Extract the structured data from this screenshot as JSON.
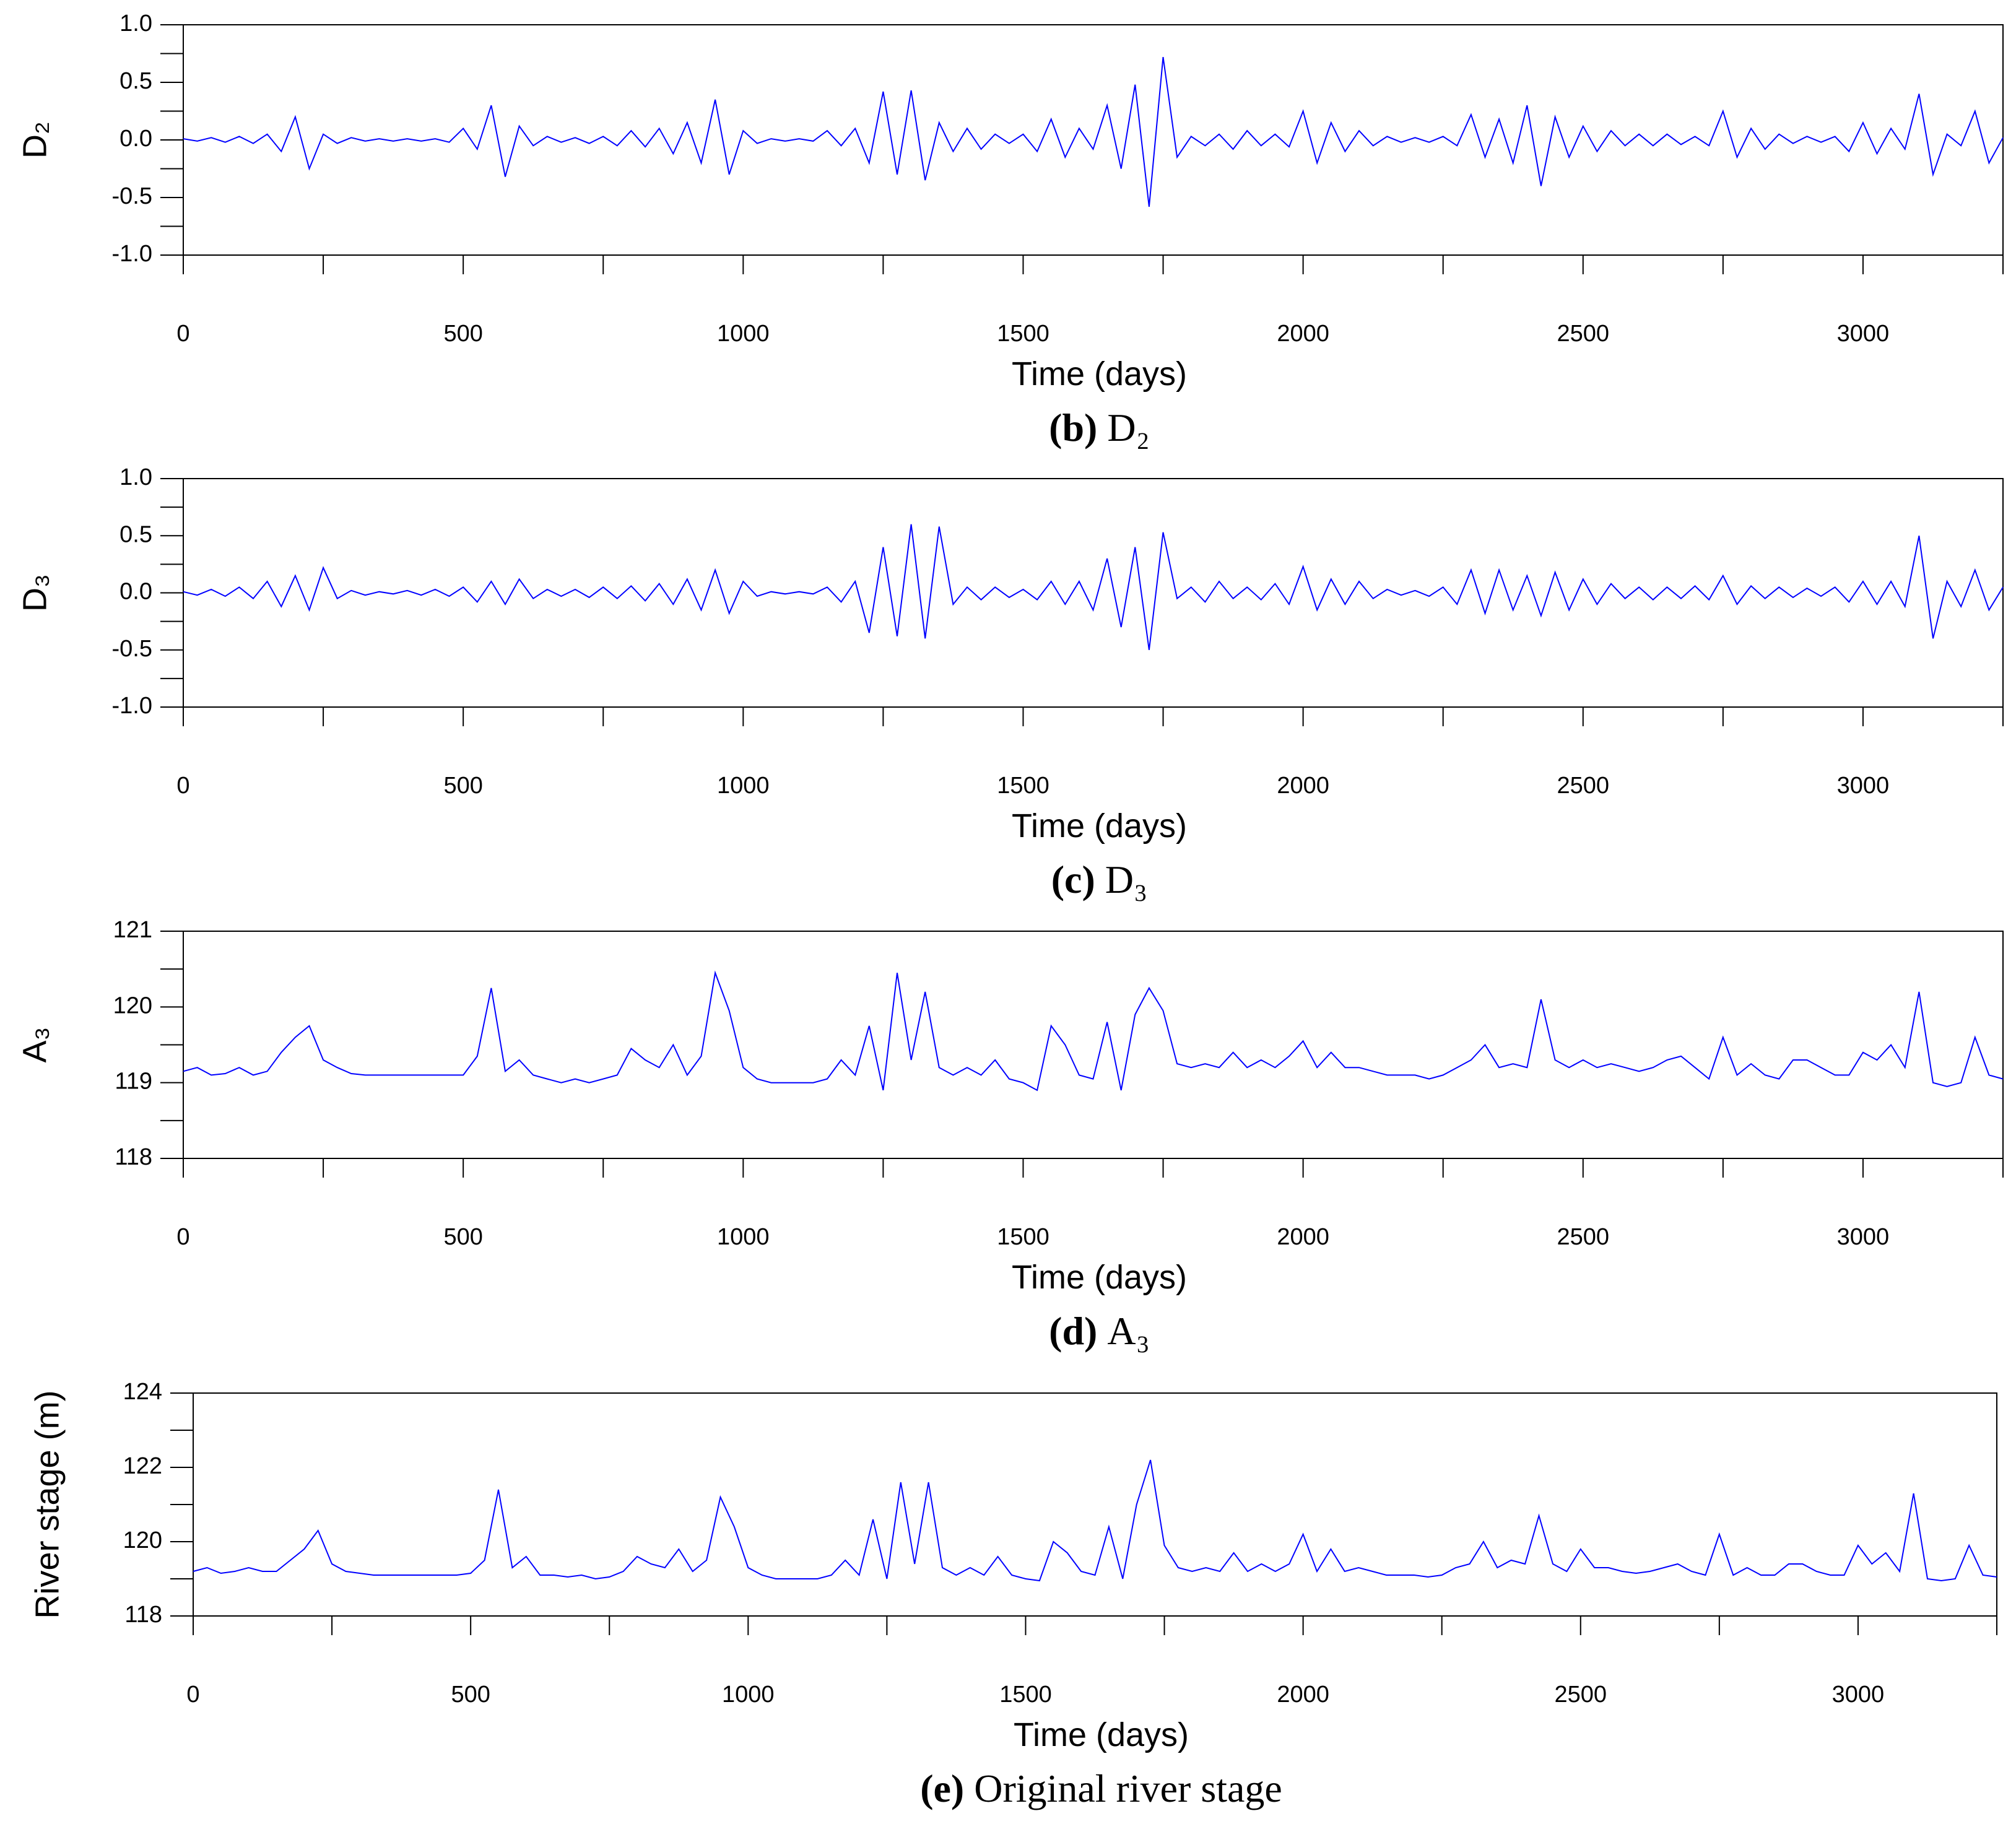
{
  "chart_data": [
    {
      "type": "line",
      "caption_label": "(b)",
      "caption": "D₂",
      "ylabel": "D₂",
      "xlabel": "Time (days)",
      "color": "#0000ff",
      "x": [
        0,
        25,
        50,
        75,
        100,
        125,
        150,
        175,
        200,
        225,
        250,
        275,
        300,
        325,
        350,
        375,
        400,
        425,
        450,
        475,
        500,
        525,
        550,
        575,
        600,
        625,
        650,
        675,
        700,
        725,
        750,
        775,
        800,
        825,
        850,
        875,
        900,
        925,
        950,
        975,
        1000,
        1025,
        1050,
        1075,
        1100,
        1125,
        1150,
        1175,
        1200,
        1225,
        1250,
        1275,
        1300,
        1325,
        1350,
        1375,
        1400,
        1425,
        1450,
        1475,
        1500,
        1525,
        1550,
        1575,
        1600,
        1625,
        1650,
        1675,
        1700,
        1725,
        1750,
        1775,
        1800,
        1825,
        1850,
        1875,
        1900,
        1925,
        1950,
        1975,
        2000,
        2025,
        2050,
        2075,
        2100,
        2125,
        2150,
        2175,
        2200,
        2225,
        2250,
        2275,
        2300,
        2325,
        2350,
        2375,
        2400,
        2425,
        2450,
        2475,
        2500,
        2525,
        2550,
        2575,
        2600,
        2625,
        2650,
        2675,
        2700,
        2725,
        2750,
        2775,
        2800,
        2825,
        2850,
        2875,
        2900,
        2925,
        2950,
        2975,
        3000,
        3025,
        3050,
        3075,
        3100,
        3125,
        3150,
        3175,
        3200,
        3225,
        3250
      ],
      "values": [
        0.01,
        -0.01,
        0.02,
        -0.02,
        0.03,
        -0.03,
        0.05,
        -0.1,
        0.2,
        -0.25,
        0.05,
        -0.03,
        0.02,
        -0.01,
        0.01,
        -0.01,
        0.01,
        -0.01,
        0.01,
        -0.02,
        0.1,
        -0.08,
        0.3,
        -0.32,
        0.12,
        -0.05,
        0.03,
        -0.02,
        0.02,
        -0.03,
        0.03,
        -0.05,
        0.08,
        -0.06,
        0.1,
        -0.12,
        0.15,
        -0.2,
        0.35,
        -0.3,
        0.08,
        -0.03,
        0.01,
        -0.01,
        0.01,
        -0.01,
        0.08,
        -0.05,
        0.1,
        -0.2,
        0.42,
        -0.3,
        0.43,
        -0.35,
        0.15,
        -0.1,
        0.1,
        -0.08,
        0.05,
        -0.03,
        0.05,
        -0.1,
        0.18,
        -0.15,
        0.1,
        -0.08,
        0.3,
        -0.25,
        0.48,
        -0.58,
        0.72,
        -0.15,
        0.03,
        -0.05,
        0.05,
        -0.08,
        0.08,
        -0.05,
        0.05,
        -0.06,
        0.25,
        -0.2,
        0.15,
        -0.1,
        0.08,
        -0.05,
        0.03,
        -0.02,
        0.02,
        -0.02,
        0.03,
        -0.05,
        0.22,
        -0.15,
        0.18,
        -0.2,
        0.3,
        -0.4,
        0.2,
        -0.15,
        0.12,
        -0.1,
        0.08,
        -0.05,
        0.05,
        -0.05,
        0.05,
        -0.04,
        0.03,
        -0.05,
        0.25,
        -0.15,
        0.1,
        -0.08,
        0.05,
        -0.03,
        0.03,
        -0.02,
        0.03,
        -0.1,
        0.15,
        -0.12,
        0.1,
        -0.08,
        0.4,
        -0.3,
        0.05,
        -0.05,
        0.25,
        -0.2,
        0.02
      ],
      "xlim": [
        0,
        3250
      ],
      "xticks": [
        0,
        500,
        1000,
        1500,
        2000,
        2500,
        3000
      ],
      "xminor": [
        250,
        750,
        1250,
        1750,
        2250,
        2750,
        3250
      ],
      "ylim": [
        -1,
        1
      ],
      "yticks": [
        {
          "value": -1,
          "label": "-1.0"
        },
        -0.5,
        {
          "value": 0,
          "label": "0.0"
        },
        0.5,
        {
          "value": 1,
          "label": "1.0"
        }
      ],
      "yminor": [
        -0.75,
        -0.25,
        0.25,
        0.75
      ]
    },
    {
      "type": "line",
      "caption_label": "(c)",
      "caption": "D₃",
      "ylabel": "D₃",
      "xlabel": "Time (days)",
      "color": "#0000ff",
      "x": [
        0,
        25,
        50,
        75,
        100,
        125,
        150,
        175,
        200,
        225,
        250,
        275,
        300,
        325,
        350,
        375,
        400,
        425,
        450,
        475,
        500,
        525,
        550,
        575,
        600,
        625,
        650,
        675,
        700,
        725,
        750,
        775,
        800,
        825,
        850,
        875,
        900,
        925,
        950,
        975,
        1000,
        1025,
        1050,
        1075,
        1100,
        1125,
        1150,
        1175,
        1200,
        1225,
        1250,
        1275,
        1300,
        1325,
        1350,
        1375,
        1400,
        1425,
        1450,
        1475,
        1500,
        1525,
        1550,
        1575,
        1600,
        1625,
        1650,
        1675,
        1700,
        1725,
        1750,
        1775,
        1800,
        1825,
        1850,
        1875,
        1900,
        1925,
        1950,
        1975,
        2000,
        2025,
        2050,
        2075,
        2100,
        2125,
        2150,
        2175,
        2200,
        2225,
        2250,
        2275,
        2300,
        2325,
        2350,
        2375,
        2400,
        2425,
        2450,
        2475,
        2500,
        2525,
        2550,
        2575,
        2600,
        2625,
        2650,
        2675,
        2700,
        2725,
        2750,
        2775,
        2800,
        2825,
        2850,
        2875,
        2900,
        2925,
        2950,
        2975,
        3000,
        3025,
        3050,
        3075,
        3100,
        3125,
        3150,
        3175,
        3200,
        3225,
        3250
      ],
      "values": [
        0.01,
        -0.02,
        0.03,
        -0.03,
        0.05,
        -0.05,
        0.1,
        -0.12,
        0.15,
        -0.15,
        0.22,
        -0.05,
        0.02,
        -0.02,
        0.01,
        -0.01,
        0.02,
        -0.02,
        0.03,
        -0.03,
        0.05,
        -0.08,
        0.1,
        -0.1,
        0.12,
        -0.05,
        0.03,
        -0.03,
        0.03,
        -0.04,
        0.05,
        -0.05,
        0.06,
        -0.07,
        0.08,
        -0.1,
        0.12,
        -0.15,
        0.2,
        -0.18,
        0.1,
        -0.03,
        0.01,
        -0.01,
        0.01,
        -0.01,
        0.05,
        -0.08,
        0.1,
        -0.35,
        0.4,
        -0.38,
        0.6,
        -0.4,
        0.58,
        -0.1,
        0.05,
        -0.06,
        0.05,
        -0.04,
        0.03,
        -0.06,
        0.1,
        -0.1,
        0.1,
        -0.15,
        0.3,
        -0.3,
        0.4,
        -0.5,
        0.53,
        -0.05,
        0.05,
        -0.08,
        0.1,
        -0.05,
        0.05,
        -0.06,
        0.08,
        -0.1,
        0.23,
        -0.15,
        0.12,
        -0.1,
        0.1,
        -0.05,
        0.03,
        -0.02,
        0.02,
        -0.03,
        0.05,
        -0.1,
        0.2,
        -0.18,
        0.2,
        -0.15,
        0.15,
        -0.2,
        0.18,
        -0.15,
        0.12,
        -0.1,
        0.08,
        -0.05,
        0.05,
        -0.06,
        0.05,
        -0.05,
        0.06,
        -0.06,
        0.15,
        -0.1,
        0.06,
        -0.05,
        0.05,
        -0.04,
        0.04,
        -0.03,
        0.05,
        -0.08,
        0.1,
        -0.1,
        0.1,
        -0.12,
        0.5,
        -0.4,
        0.1,
        -0.12,
        0.2,
        -0.15,
        0.05
      ],
      "xlim": [
        0,
        3250
      ],
      "xticks": [
        0,
        500,
        1000,
        1500,
        2000,
        2500,
        3000
      ],
      "xminor": [
        250,
        750,
        1250,
        1750,
        2250,
        2750,
        3250
      ],
      "ylim": [
        -1,
        1
      ],
      "yticks": [
        {
          "value": -1,
          "label": "-1.0"
        },
        -0.5,
        {
          "value": 0,
          "label": "0.0"
        },
        0.5,
        {
          "value": 1,
          "label": "1.0"
        }
      ],
      "yminor": [
        -0.75,
        -0.25,
        0.25,
        0.75
      ]
    },
    {
      "type": "line",
      "caption_label": "(d)",
      "caption": "A₃",
      "ylabel": "A₃",
      "xlabel": "Time (days)",
      "color": "#0000ff",
      "x": [
        0,
        25,
        50,
        75,
        100,
        125,
        150,
        175,
        200,
        225,
        250,
        275,
        300,
        325,
        350,
        375,
        400,
        425,
        450,
        475,
        500,
        525,
        550,
        575,
        600,
        625,
        650,
        675,
        700,
        725,
        750,
        775,
        800,
        825,
        850,
        875,
        900,
        925,
        950,
        975,
        1000,
        1025,
        1050,
        1075,
        1100,
        1125,
        1150,
        1175,
        1200,
        1225,
        1250,
        1275,
        1300,
        1325,
        1350,
        1375,
        1400,
        1425,
        1450,
        1475,
        1500,
        1525,
        1550,
        1575,
        1600,
        1625,
        1650,
        1675,
        1700,
        1725,
        1750,
        1775,
        1800,
        1825,
        1850,
        1875,
        1900,
        1925,
        1950,
        1975,
        2000,
        2025,
        2050,
        2075,
        2100,
        2125,
        2150,
        2175,
        2200,
        2225,
        2250,
        2275,
        2300,
        2325,
        2350,
        2375,
        2400,
        2425,
        2450,
        2475,
        2500,
        2525,
        2550,
        2575,
        2600,
        2625,
        2650,
        2675,
        2700,
        2725,
        2750,
        2775,
        2800,
        2825,
        2850,
        2875,
        2900,
        2925,
        2950,
        2975,
        3000,
        3025,
        3050,
        3075,
        3100,
        3125,
        3150,
        3175,
        3200,
        3225,
        3250
      ],
      "values": [
        119.15,
        119.2,
        119.1,
        119.12,
        119.2,
        119.1,
        119.15,
        119.4,
        119.6,
        119.75,
        119.3,
        119.2,
        119.12,
        119.1,
        119.1,
        119.1,
        119.1,
        119.1,
        119.1,
        119.1,
        119.1,
        119.35,
        120.25,
        119.15,
        119.3,
        119.1,
        119.05,
        119.0,
        119.05,
        119.0,
        119.05,
        119.1,
        119.45,
        119.3,
        119.2,
        119.5,
        119.1,
        119.35,
        120.45,
        119.95,
        119.2,
        119.05,
        119.0,
        119.0,
        119.0,
        119.0,
        119.05,
        119.3,
        119.1,
        119.75,
        118.9,
        120.45,
        119.3,
        120.2,
        119.2,
        119.1,
        119.2,
        119.1,
        119.3,
        119.05,
        119.0,
        118.9,
        119.75,
        119.5,
        119.1,
        119.05,
        119.8,
        118.9,
        119.9,
        120.25,
        119.95,
        119.25,
        119.2,
        119.25,
        119.2,
        119.4,
        119.2,
        119.3,
        119.2,
        119.35,
        119.55,
        119.2,
        119.4,
        119.2,
        119.2,
        119.15,
        119.1,
        119.1,
        119.1,
        119.05,
        119.1,
        119.2,
        119.3,
        119.5,
        119.2,
        119.25,
        119.2,
        120.1,
        119.3,
        119.2,
        119.3,
        119.2,
        119.25,
        119.2,
        119.15,
        119.2,
        119.3,
        119.35,
        119.2,
        119.05,
        119.6,
        119.1,
        119.25,
        119.1,
        119.05,
        119.3,
        119.3,
        119.2,
        119.1,
        119.1,
        119.4,
        119.3,
        119.5,
        119.2,
        120.2,
        119.0,
        118.95,
        119.0,
        119.6,
        119.1,
        119.05
      ],
      "xlim": [
        0,
        3250
      ],
      "xticks": [
        0,
        500,
        1000,
        1500,
        2000,
        2500,
        3000
      ],
      "xminor": [
        250,
        750,
        1250,
        1750,
        2250,
        2750,
        3250
      ],
      "ylim": [
        118,
        121
      ],
      "yticks": [
        118,
        119,
        120,
        121
      ],
      "yminor": [
        118.5,
        119.5,
        120.5
      ]
    },
    {
      "type": "line",
      "caption_label": "(e)",
      "caption": "Original river stage",
      "ylabel": "River stage (m)",
      "xlabel": "Time (days)",
      "color": "#0000ff",
      "x": [
        0,
        25,
        50,
        75,
        100,
        125,
        150,
        175,
        200,
        225,
        250,
        275,
        300,
        325,
        350,
        375,
        400,
        425,
        450,
        475,
        500,
        525,
        550,
        575,
        600,
        625,
        650,
        675,
        700,
        725,
        750,
        775,
        800,
        825,
        850,
        875,
        900,
        925,
        950,
        975,
        1000,
        1025,
        1050,
        1075,
        1100,
        1125,
        1150,
        1175,
        1200,
        1225,
        1250,
        1275,
        1300,
        1325,
        1350,
        1375,
        1400,
        1425,
        1450,
        1475,
        1500,
        1525,
        1550,
        1575,
        1600,
        1625,
        1650,
        1675,
        1700,
        1725,
        1750,
        1775,
        1800,
        1825,
        1850,
        1875,
        1900,
        1925,
        1950,
        1975,
        2000,
        2025,
        2050,
        2075,
        2100,
        2125,
        2150,
        2175,
        2200,
        2225,
        2250,
        2275,
        2300,
        2325,
        2350,
        2375,
        2400,
        2425,
        2450,
        2475,
        2500,
        2525,
        2550,
        2575,
        2600,
        2625,
        2650,
        2675,
        2700,
        2725,
        2750,
        2775,
        2800,
        2825,
        2850,
        2875,
        2900,
        2925,
        2950,
        2975,
        3000,
        3025,
        3050,
        3075,
        3100,
        3125,
        3150,
        3175,
        3200,
        3225,
        3250
      ],
      "values": [
        119.2,
        119.3,
        119.15,
        119.2,
        119.3,
        119.2,
        119.2,
        119.5,
        119.8,
        120.3,
        119.4,
        119.2,
        119.15,
        119.1,
        119.1,
        119.1,
        119.1,
        119.1,
        119.1,
        119.1,
        119.15,
        119.5,
        121.4,
        119.3,
        119.6,
        119.1,
        119.1,
        119.05,
        119.1,
        119.0,
        119.05,
        119.2,
        119.6,
        119.4,
        119.3,
        119.8,
        119.2,
        119.5,
        121.2,
        120.4,
        119.3,
        119.1,
        119.0,
        119.0,
        119.0,
        119.0,
        119.1,
        119.5,
        119.1,
        120.6,
        119.0,
        121.6,
        119.4,
        121.6,
        119.3,
        119.1,
        119.3,
        119.1,
        119.6,
        119.1,
        119.0,
        118.95,
        120.0,
        119.7,
        119.2,
        119.1,
        120.4,
        119.0,
        121.0,
        122.2,
        119.9,
        119.3,
        119.2,
        119.3,
        119.2,
        119.7,
        119.2,
        119.4,
        119.2,
        119.4,
        120.2,
        119.2,
        119.8,
        119.2,
        119.3,
        119.2,
        119.1,
        119.1,
        119.1,
        119.05,
        119.1,
        119.3,
        119.4,
        120.0,
        119.3,
        119.5,
        119.4,
        120.7,
        119.4,
        119.2,
        119.8,
        119.3,
        119.3,
        119.2,
        119.15,
        119.2,
        119.3,
        119.4,
        119.2,
        119.1,
        120.2,
        119.1,
        119.3,
        119.1,
        119.1,
        119.4,
        119.4,
        119.2,
        119.1,
        119.1,
        119.9,
        119.4,
        119.7,
        119.2,
        121.3,
        119.0,
        118.95,
        119.0,
        119.9,
        119.1,
        119.05
      ],
      "xlim": [
        0,
        3250
      ],
      "xticks": [
        0,
        500,
        1000,
        1500,
        2000,
        2500,
        3000
      ],
      "xminor": [
        250,
        750,
        1250,
        1750,
        2250,
        2750,
        3250
      ],
      "ylim": [
        118,
        124
      ],
      "yticks": [
        118,
        120,
        122,
        124
      ],
      "yminor": [
        119,
        121,
        123
      ]
    }
  ]
}
